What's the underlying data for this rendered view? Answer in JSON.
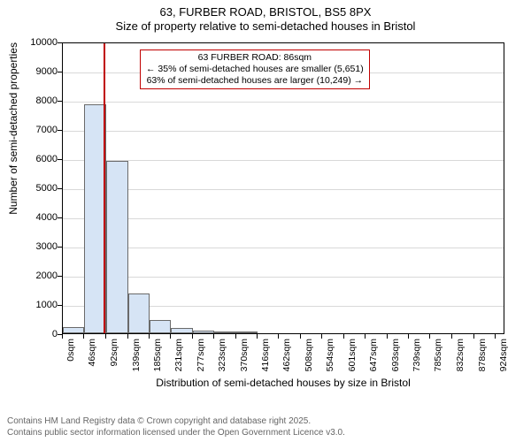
{
  "title": {
    "line1": "63, FURBER ROAD, BRISTOL, BS5 8PX",
    "line2": "Size of property relative to semi-detached houses in Bristol"
  },
  "chart": {
    "type": "histogram",
    "background_color": "#ffffff",
    "grid_color": "#d9d9d9",
    "axis_color": "#000000",
    "bar_fill": "#d6e4f5",
    "bar_border": "#6a6a6a",
    "marker_color": "#c00000",
    "ylim": [
      0,
      10000
    ],
    "yticks": [
      0,
      1000,
      2000,
      3000,
      4000,
      5000,
      6000,
      7000,
      8000,
      9000,
      10000
    ],
    "xlim": [
      0,
      945
    ],
    "xticks": [
      {
        "v": 0,
        "label": "0sqm"
      },
      {
        "v": 46,
        "label": "46sqm"
      },
      {
        "v": 92,
        "label": "92sqm"
      },
      {
        "v": 139,
        "label": "139sqm"
      },
      {
        "v": 185,
        "label": "185sqm"
      },
      {
        "v": 231,
        "label": "231sqm"
      },
      {
        "v": 277,
        "label": "277sqm"
      },
      {
        "v": 323,
        "label": "323sqm"
      },
      {
        "v": 370,
        "label": "370sqm"
      },
      {
        "v": 416,
        "label": "416sqm"
      },
      {
        "v": 462,
        "label": "462sqm"
      },
      {
        "v": 508,
        "label": "508sqm"
      },
      {
        "v": 554,
        "label": "554sqm"
      },
      {
        "v": 601,
        "label": "601sqm"
      },
      {
        "v": 647,
        "label": "647sqm"
      },
      {
        "v": 693,
        "label": "693sqm"
      },
      {
        "v": 739,
        "label": "739sqm"
      },
      {
        "v": 785,
        "label": "785sqm"
      },
      {
        "v": 832,
        "label": "832sqm"
      },
      {
        "v": 878,
        "label": "878sqm"
      },
      {
        "v": 924,
        "label": "924sqm"
      }
    ],
    "bars": [
      {
        "x0": 0,
        "x1": 46,
        "y": 200
      },
      {
        "x0": 46,
        "x1": 92,
        "y": 7850
      },
      {
        "x0": 92,
        "x1": 139,
        "y": 5900
      },
      {
        "x0": 139,
        "x1": 185,
        "y": 1350
      },
      {
        "x0": 185,
        "x1": 231,
        "y": 450
      },
      {
        "x0": 231,
        "x1": 277,
        "y": 180
      },
      {
        "x0": 277,
        "x1": 323,
        "y": 100
      },
      {
        "x0": 323,
        "x1": 370,
        "y": 60
      },
      {
        "x0": 370,
        "x1": 416,
        "y": 25
      },
      {
        "x0": 416,
        "x1": 462,
        "y": 12
      },
      {
        "x0": 462,
        "x1": 508,
        "y": 8
      }
    ],
    "marker_x": 86,
    "ylabel": "Number of semi-detached properties",
    "xlabel": "Distribution of semi-detached houses by size in Bristol",
    "label_fontsize": 12,
    "tick_fontsize": 11
  },
  "annotation": {
    "line1": "63 FURBER ROAD: 86sqm",
    "line2": "← 35% of semi-detached houses are smaller (5,651)",
    "line3": "63% of semi-detached houses are larger (10,249) →"
  },
  "footer": {
    "line1": "Contains HM Land Registry data © Crown copyright and database right 2025.",
    "line2": "Contains public sector information licensed under the Open Government Licence v3.0."
  }
}
